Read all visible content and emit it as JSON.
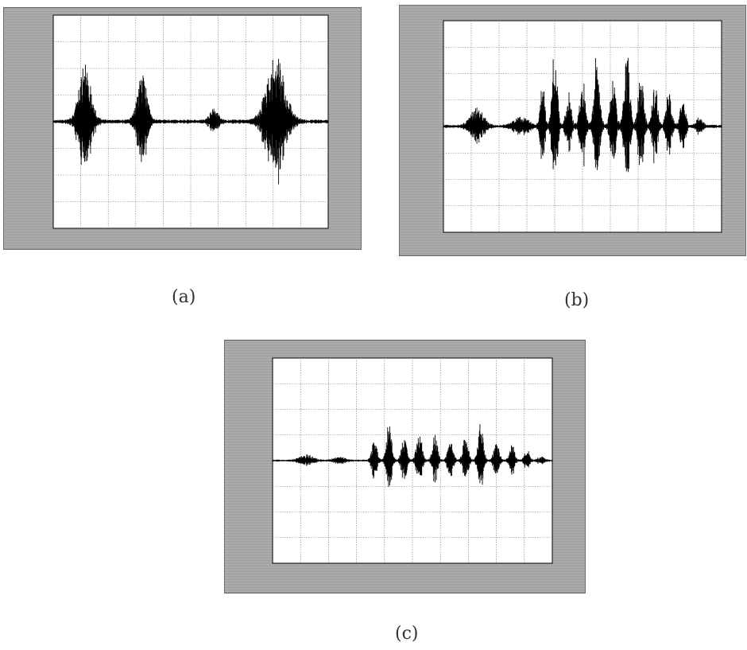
{
  "captions": [
    "(a)",
    "(b)",
    "(c)"
  ],
  "chart_data": [
    {
      "type": "line",
      "panel": "a",
      "title": "",
      "xlabel": "",
      "ylabel": "",
      "xlim": [
        0,
        5
      ],
      "ylim": [
        -150,
        150
      ],
      "grid": true,
      "bursts": [
        {
          "center": 0.58,
          "width": 0.3,
          "amp": 78
        },
        {
          "center": 1.62,
          "width": 0.24,
          "amp": 64
        },
        {
          "center": 2.92,
          "width": 0.2,
          "amp": 16
        },
        {
          "center": 4.05,
          "width": 0.45,
          "amp": 90
        }
      ],
      "noise_amp": 3,
      "samples": 650
    },
    {
      "type": "line",
      "panel": "b",
      "title": "",
      "xlabel": "",
      "ylabel": "",
      "xlim": [
        0,
        5
      ],
      "ylim": [
        -150,
        150
      ],
      "grid": true,
      "bursts": [
        {
          "center": 0.6,
          "width": 0.3,
          "amp": 28
        },
        {
          "center": 1.4,
          "width": 0.35,
          "amp": 12
        },
        {
          "center": 1.78,
          "width": 0.1,
          "amp": 70
        },
        {
          "center": 2.0,
          "width": 0.12,
          "amp": 120
        },
        {
          "center": 2.25,
          "width": 0.12,
          "amp": 50
        },
        {
          "center": 2.5,
          "width": 0.13,
          "amp": 70
        },
        {
          "center": 2.76,
          "width": 0.13,
          "amp": 110
        },
        {
          "center": 3.05,
          "width": 0.13,
          "amp": 70
        },
        {
          "center": 3.3,
          "width": 0.13,
          "amp": 105
        },
        {
          "center": 3.55,
          "width": 0.13,
          "amp": 75
        },
        {
          "center": 3.8,
          "width": 0.13,
          "amp": 60
        },
        {
          "center": 4.05,
          "width": 0.13,
          "amp": 50
        },
        {
          "center": 4.3,
          "width": 0.13,
          "amp": 38
        },
        {
          "center": 4.6,
          "width": 0.15,
          "amp": 12
        }
      ],
      "noise_amp": 2.5,
      "samples": 650
    },
    {
      "type": "line",
      "panel": "c",
      "title": "",
      "xlabel": "",
      "ylabel": "",
      "xlim": [
        0,
        5
      ],
      "ylim": [
        -150,
        150
      ],
      "grid": true,
      "bursts": [
        {
          "center": 0.6,
          "width": 0.3,
          "amp": 8
        },
        {
          "center": 1.2,
          "width": 0.25,
          "amp": 5
        },
        {
          "center": 1.82,
          "width": 0.12,
          "amp": 30
        },
        {
          "center": 2.08,
          "width": 0.12,
          "amp": 58
        },
        {
          "center": 2.35,
          "width": 0.12,
          "amp": 35
        },
        {
          "center": 2.62,
          "width": 0.12,
          "amp": 45
        },
        {
          "center": 2.9,
          "width": 0.12,
          "amp": 40
        },
        {
          "center": 3.18,
          "width": 0.12,
          "amp": 32
        },
        {
          "center": 3.45,
          "width": 0.12,
          "amp": 40
        },
        {
          "center": 3.72,
          "width": 0.12,
          "amp": 60
        },
        {
          "center": 4.0,
          "width": 0.12,
          "amp": 30
        },
        {
          "center": 4.28,
          "width": 0.12,
          "amp": 24
        },
        {
          "center": 4.55,
          "width": 0.12,
          "amp": 15
        },
        {
          "center": 4.8,
          "width": 0.15,
          "amp": 5
        }
      ],
      "noise_amp": 1.5,
      "samples": 650
    }
  ]
}
